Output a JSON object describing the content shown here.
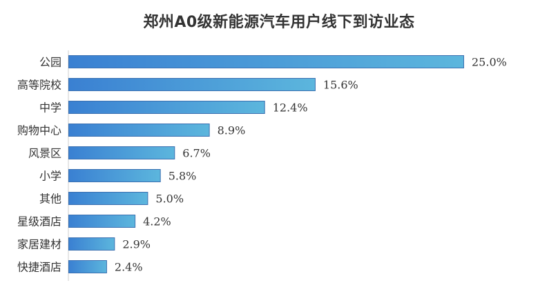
{
  "chart_data": {
    "type": "bar",
    "orientation": "horizontal",
    "title": "郑州A0级新能源汽车用户线下到访业态",
    "categories": [
      "公园",
      "高等院校",
      "中学",
      "购物中心",
      "风景区",
      "小学",
      "其他",
      "星级酒店",
      "家居建材",
      "快捷酒店"
    ],
    "values": [
      25.0,
      15.6,
      12.4,
      8.9,
      6.7,
      5.8,
      5.0,
      4.2,
      2.9,
      2.4
    ],
    "value_labels": [
      "25.0%",
      "15.6%",
      "12.4%",
      "8.9%",
      "6.7%",
      "5.8%",
      "5.0%",
      "4.2%",
      "2.9%",
      "2.4%"
    ],
    "xlabel": "",
    "ylabel": "",
    "xlim": [
      0,
      25
    ],
    "grid": false,
    "legend": "none",
    "colors": {
      "bar_start": "#3a80d2",
      "bar_end": "#5cb6dd",
      "bar_stroke": "#3a6fb0",
      "label": "#333333",
      "axis": "#cccccc"
    }
  }
}
